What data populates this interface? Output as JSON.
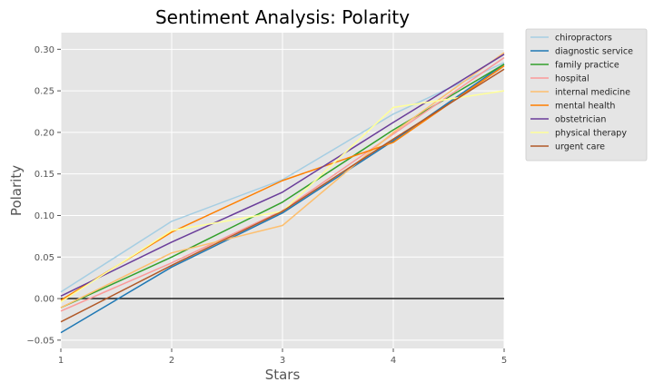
{
  "chart_data": {
    "type": "line",
    "title": "Sentiment Analysis: Polarity",
    "xlabel": "Stars",
    "ylabel": "Polarity",
    "x": [
      1,
      2,
      3,
      4,
      5
    ],
    "xlim": [
      1,
      5
    ],
    "ylim": [
      -0.06,
      0.32
    ],
    "x_ticks": [
      "1",
      "2",
      "3",
      "4",
      "5"
    ],
    "y_ticks": [
      {
        "value": -0.05,
        "label": "−0.05"
      },
      {
        "value": 0.0,
        "label": "0.00"
      },
      {
        "value": 0.05,
        "label": "0.05"
      },
      {
        "value": 0.1,
        "label": "0.10"
      },
      {
        "value": 0.15,
        "label": "0.15"
      },
      {
        "value": 0.2,
        "label": "0.20"
      },
      {
        "value": 0.25,
        "label": "0.25"
      },
      {
        "value": 0.3,
        "label": "0.30"
      }
    ],
    "grid": true,
    "zero_line": 0,
    "background_color": "#e5e5e5",
    "legend_position": "outside-right",
    "series": [
      {
        "name": "chiropractors",
        "color": "#a6cee3",
        "values": [
          0.008,
          0.093,
          0.143,
          0.222,
          0.284
        ]
      },
      {
        "name": "diagnostic service",
        "color": "#1f78b4",
        "values": [
          -0.041,
          0.038,
          0.103,
          0.19,
          0.282
        ]
      },
      {
        "name": "family practice",
        "color": "#33a02c",
        "values": [
          -0.011,
          0.05,
          0.116,
          0.203,
          0.282
        ]
      },
      {
        "name": "hospital",
        "color": "#fb9a99",
        "values": [
          -0.015,
          0.043,
          0.106,
          0.198,
          0.29
        ]
      },
      {
        "name": "internal medicine",
        "color": "#fdbf6f",
        "values": [
          -0.011,
          0.055,
          0.088,
          0.2,
          0.296
        ]
      },
      {
        "name": "mental health",
        "color": "#ff7f00",
        "values": [
          -0.002,
          0.08,
          0.142,
          0.188,
          0.28
        ]
      },
      {
        "name": "obstetrician",
        "color": "#6a3d9a",
        "values": [
          0.003,
          0.068,
          0.128,
          0.212,
          0.294
        ]
      },
      {
        "name": "physical therapy",
        "color": "#ffff99",
        "values": [
          -0.004,
          0.082,
          0.105,
          0.23,
          0.25
        ]
      },
      {
        "name": "urgent care",
        "color": "#b15928",
        "values": [
          -0.028,
          0.04,
          0.105,
          0.192,
          0.276
        ]
      }
    ]
  }
}
